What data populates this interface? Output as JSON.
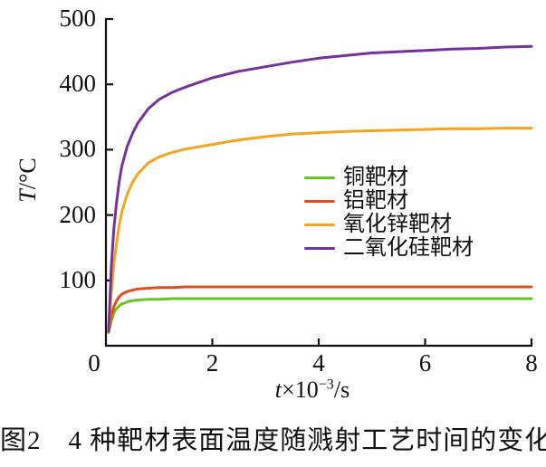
{
  "figure": {
    "caption": "图2　4 种靶材表面温度随溅射工艺时间的变化"
  },
  "chart_data": {
    "type": "line",
    "title": "",
    "xlabel": {
      "var": "t",
      "mid": "×10",
      "sup": "−3",
      "rest": "/s"
    },
    "ylabel": {
      "var": "T",
      "rest": "/°C"
    },
    "x_axis": {
      "min": 0,
      "max": 8,
      "ticks": [
        0,
        2,
        4,
        6,
        8
      ],
      "tick_labels": [
        "0",
        "2",
        "4",
        "6",
        "8"
      ]
    },
    "y_axis": {
      "min": 0,
      "max": 500,
      "ticks": [
        100,
        200,
        300,
        400,
        500
      ],
      "tick_labels": [
        "100",
        "200",
        "300",
        "400",
        "500"
      ]
    },
    "grid": false,
    "legend_position": "center-right",
    "x": [
      0.05,
      0.1,
      0.15,
      0.2,
      0.25,
      0.3,
      0.4,
      0.5,
      0.6,
      0.8,
      1,
      1.25,
      1.5,
      2,
      2.5,
      3,
      3.5,
      4,
      4.5,
      5,
      5.5,
      6,
      6.5,
      7,
      7.5,
      8
    ],
    "series": [
      {
        "key": "copper-target",
        "name": "铜靶材",
        "color": "#64C81E",
        "values": [
          20,
          38,
          50,
          57,
          61,
          64,
          67,
          69,
          70,
          71,
          71,
          72,
          72,
          72,
          72,
          72,
          72,
          72,
          72,
          72,
          72,
          72,
          72,
          72,
          72,
          72
        ]
      },
      {
        "key": "aluminum-target",
        "name": "铝靶材",
        "color": "#E04E1D",
        "values": [
          21,
          45,
          60,
          69,
          75,
          79,
          83,
          85,
          87,
          88,
          89,
          89,
          90,
          90,
          90,
          90,
          90,
          90,
          90,
          90,
          90,
          90,
          90,
          90,
          90,
          90
        ]
      },
      {
        "key": "zinc-oxide-target",
        "name": "氧化锌靶材",
        "color": "#F2A51D",
        "values": [
          21,
          80,
          125,
          158,
          185,
          205,
          232,
          250,
          263,
          280,
          289,
          296,
          301,
          308,
          315,
          320,
          324,
          326,
          328,
          329,
          330,
          331,
          332,
          332,
          333,
          333
        ]
      },
      {
        "key": "silicon-dioxide-target",
        "name": "二氧化硅靶材",
        "color": "#76329B",
        "values": [
          22,
          120,
          180,
          220,
          252,
          275,
          305,
          325,
          341,
          363,
          377,
          388,
          396,
          410,
          420,
          427,
          434,
          440,
          444,
          448,
          450,
          452,
          454,
          455,
          457,
          458
        ]
      }
    ]
  }
}
